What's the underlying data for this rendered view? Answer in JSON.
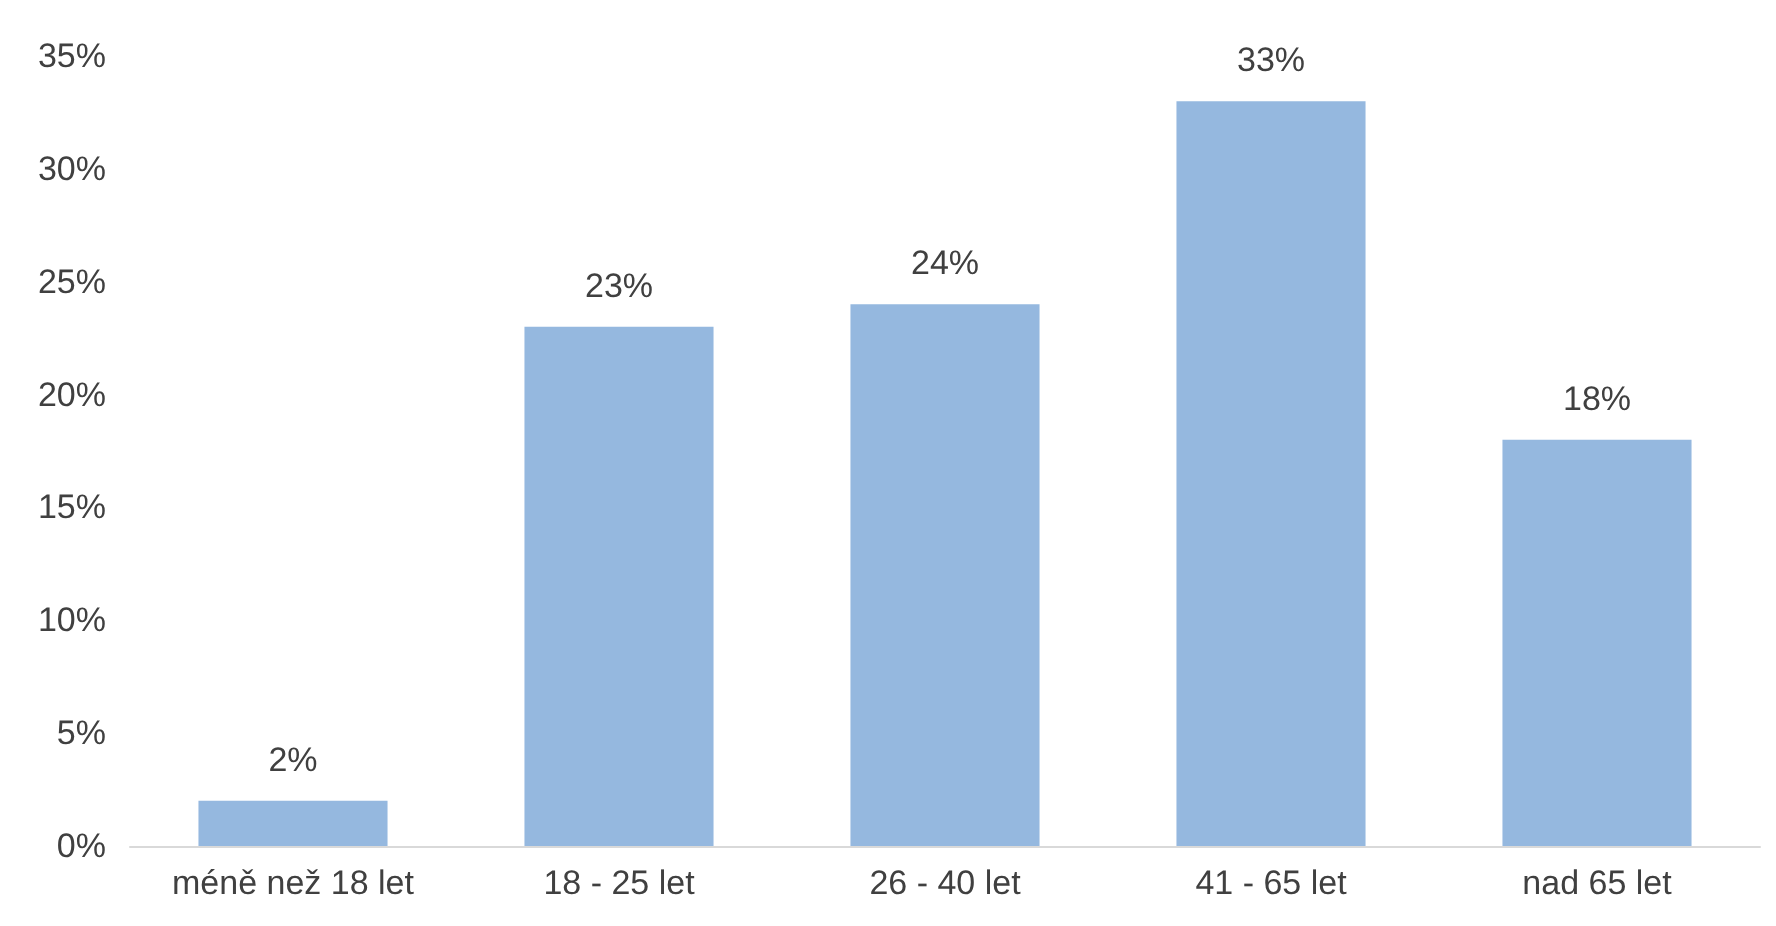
{
  "chart_data": {
    "type": "bar",
    "categories": [
      "méně než 18 let",
      "18 - 25 let",
      "26 - 40 let",
      "41 - 65 let",
      "nad 65 let"
    ],
    "values": [
      2,
      23,
      24,
      33,
      18
    ],
    "color": "#95b8df",
    "value_labels": [
      "2%",
      "23%",
      "24%",
      "33%",
      "18%"
    ],
    "ylim": [
      0,
      35
    ],
    "yticks": [
      {
        "value": 0,
        "label": "0%"
      },
      {
        "value": 5,
        "label": "5%"
      },
      {
        "value": 10,
        "label": "10%"
      },
      {
        "value": 15,
        "label": "15%"
      },
      {
        "value": 20,
        "label": "20%"
      },
      {
        "value": 25,
        "label": "25%"
      },
      {
        "value": 30,
        "label": "30%"
      },
      {
        "value": 35,
        "label": "35%"
      }
    ],
    "grid": false
  }
}
